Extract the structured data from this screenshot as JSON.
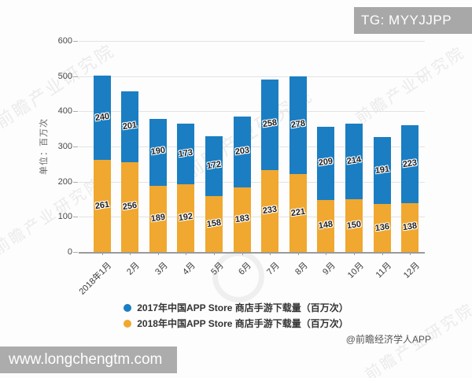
{
  "overlay": {
    "tg_badge": "TG: MYYJJPP",
    "bottom_banner": "www.longchengtm.com",
    "credit": "@前瞻经济学人APP",
    "diagonal_watermark": "前瞻产业研究院"
  },
  "chart_data": {
    "type": "bar",
    "stacked": true,
    "categories": [
      "2018年1月",
      "2月",
      "3月",
      "4月",
      "5月",
      "6月",
      "7月",
      "8月",
      "9月",
      "10月",
      "11月",
      "12月"
    ],
    "series": [
      {
        "name": "2017年中国APP Store 商店手游下载量（百万次）",
        "color": "#1b7ec2",
        "stack_order": "top",
        "values": [
          240,
          201,
          190,
          173,
          172,
          203,
          258,
          278,
          209,
          214,
          191,
          223
        ]
      },
      {
        "name": "2018年中国APP Store 商店手游下载量（百万次）",
        "color": "#f0a830",
        "stack_order": "bottom",
        "values": [
          261,
          256,
          189,
          192,
          158,
          183,
          233,
          221,
          148,
          150,
          136,
          138
        ]
      }
    ],
    "title": "",
    "xlabel": "",
    "ylabel": "单位：百万次",
    "ylim": [
      0,
      600
    ],
    "yticks": [
      0,
      100,
      200,
      300,
      400,
      500,
      600
    ],
    "grid": true,
    "legend_position": "bottom",
    "value_labels": "center-of-segment"
  }
}
